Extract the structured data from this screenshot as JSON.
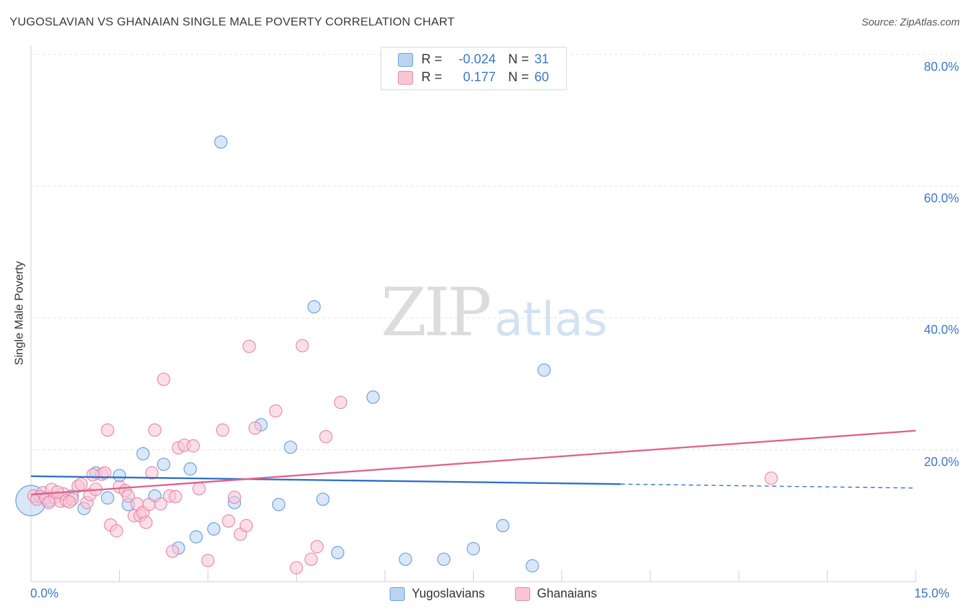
{
  "title": "YUGOSLAVIAN VS GHANAIAN SINGLE MALE POVERTY CORRELATION CHART",
  "source": "Source: ZipAtlas.com",
  "watermark": {
    "zip": "ZIP",
    "atlas": "atlas"
  },
  "colors": {
    "blue_fill": "#b9d3f3",
    "blue_stroke": "#6a9fe0",
    "blue_line": "#2c6fcb",
    "pink_fill": "#f8c5d6",
    "pink_stroke": "#e889aa",
    "pink_line": "#e0608e",
    "grid": "#e3e3e3",
    "accent_text": "#3a78c9"
  },
  "legend": {
    "rows": [
      {
        "r_label": "R =",
        "r_value": "-0.024",
        "n_label": "N =",
        "n_value": "31"
      },
      {
        "r_label": "R =",
        "r_value": "0.177",
        "n_label": "N =",
        "n_value": "60"
      }
    ]
  },
  "chart_data": {
    "type": "scatter",
    "title": "YUGOSLAVIAN VS GHANAIAN SINGLE MALE POVERTY CORRELATION CHART",
    "xlabel": "",
    "ylabel": "Single Male Poverty",
    "xlim": [
      0,
      15
    ],
    "ylim": [
      0,
      80
    ],
    "x_tick_labels": [
      "0.0%",
      "15.0%"
    ],
    "y_ticks": [
      20,
      40,
      60,
      80
    ],
    "y_tick_labels": [
      "20.0%",
      "40.0%",
      "60.0%",
      "80.0%"
    ],
    "grid": true,
    "series": [
      {
        "name": "Yugoslavians",
        "r": -0.024,
        "n": 31,
        "trend": {
          "x0": 0,
          "y0": 16.0,
          "x1": 10.0,
          "y1": 14.8,
          "dash_x1": 15.0,
          "dash_y1": 14.2
        },
        "points": [
          [
            0.0,
            12.3,
            22
          ],
          [
            0.3,
            12.5,
            11
          ],
          [
            0.7,
            13.0,
            9
          ],
          [
            0.9,
            11.1,
            9
          ],
          [
            1.1,
            16.5,
            9
          ],
          [
            1.3,
            12.7,
            9
          ],
          [
            1.5,
            16.1,
            9
          ],
          [
            1.65,
            11.7,
            9
          ],
          [
            1.9,
            19.4,
            9
          ],
          [
            2.1,
            13.0,
            9
          ],
          [
            2.25,
            17.8,
            9
          ],
          [
            2.5,
            5.1,
            9
          ],
          [
            2.7,
            17.1,
            9
          ],
          [
            2.8,
            6.8,
            9
          ],
          [
            3.1,
            8.0,
            9
          ],
          [
            3.22,
            66.7,
            9
          ],
          [
            3.45,
            12.0,
            9
          ],
          [
            3.9,
            23.8,
            9
          ],
          [
            4.2,
            11.7,
            9
          ],
          [
            4.4,
            20.4,
            9
          ],
          [
            4.8,
            41.7,
            9
          ],
          [
            4.95,
            12.5,
            9
          ],
          [
            5.2,
            4.4,
            9
          ],
          [
            5.8,
            28.0,
            9
          ],
          [
            6.35,
            3.4,
            9
          ],
          [
            7.0,
            3.4,
            9
          ],
          [
            7.5,
            5.0,
            9
          ],
          [
            8.0,
            8.5,
            9
          ],
          [
            8.5,
            2.4,
            9
          ],
          [
            8.7,
            32.1,
            9
          ],
          [
            0.15,
            12.9,
            9
          ]
        ]
      },
      {
        "name": "Ghanaians",
        "r": 0.177,
        "n": 60,
        "trend": {
          "x0": 0,
          "y0": 13.2,
          "x1": 15.0,
          "y1": 22.9
        },
        "points": [
          [
            0.05,
            13.0,
            9
          ],
          [
            0.1,
            12.5,
            9
          ],
          [
            0.2,
            13.5,
            9
          ],
          [
            0.25,
            12.7,
            9
          ],
          [
            0.35,
            14.0,
            9
          ],
          [
            0.4,
            12.8,
            9
          ],
          [
            0.5,
            12.2,
            9
          ],
          [
            0.55,
            13.3,
            9
          ],
          [
            0.6,
            12.3,
            9
          ],
          [
            0.7,
            12.5,
            9
          ],
          [
            0.8,
            14.5,
            9
          ],
          [
            0.85,
            14.8,
            9
          ],
          [
            0.95,
            12.0,
            9
          ],
          [
            1.0,
            13.2,
            9
          ],
          [
            1.1,
            14.0,
            9
          ],
          [
            1.2,
            16.3,
            9
          ],
          [
            1.25,
            16.5,
            9
          ],
          [
            1.3,
            23.0,
            9
          ],
          [
            1.35,
            8.6,
            9
          ],
          [
            1.45,
            7.7,
            9
          ],
          [
            1.5,
            14.4,
            9
          ],
          [
            1.6,
            13.8,
            9
          ],
          [
            1.65,
            13.0,
            9
          ],
          [
            1.75,
            10.0,
            9
          ],
          [
            1.8,
            11.8,
            9
          ],
          [
            1.85,
            10.0,
            9
          ],
          [
            1.9,
            10.5,
            9
          ],
          [
            1.95,
            9.0,
            9
          ],
          [
            2.0,
            11.7,
            9
          ],
          [
            2.05,
            16.5,
            9
          ],
          [
            2.1,
            23.0,
            9
          ],
          [
            2.2,
            11.8,
            9
          ],
          [
            2.25,
            30.7,
            9
          ],
          [
            2.35,
            13.0,
            9
          ],
          [
            2.4,
            4.6,
            9
          ],
          [
            2.45,
            12.9,
            9
          ],
          [
            2.5,
            20.3,
            9
          ],
          [
            2.6,
            20.7,
            9
          ],
          [
            2.75,
            20.6,
            9
          ],
          [
            2.85,
            14.1,
            9
          ],
          [
            3.0,
            3.2,
            9
          ],
          [
            3.25,
            23.0,
            9
          ],
          [
            3.35,
            9.2,
            9
          ],
          [
            3.45,
            12.8,
            9
          ],
          [
            3.55,
            7.2,
            9
          ],
          [
            3.65,
            8.5,
            9
          ],
          [
            3.7,
            35.7,
            9
          ],
          [
            3.8,
            23.3,
            9
          ],
          [
            4.15,
            25.9,
            9
          ],
          [
            4.5,
            2.1,
            9
          ],
          [
            4.6,
            35.8,
            9
          ],
          [
            4.75,
            3.4,
            9
          ],
          [
            4.85,
            5.3,
            9
          ],
          [
            5.0,
            22.0,
            9
          ],
          [
            5.25,
            27.2,
            9
          ],
          [
            0.3,
            12.0,
            9
          ],
          [
            0.45,
            13.6,
            9
          ],
          [
            0.65,
            12.1,
            9
          ],
          [
            1.05,
            16.2,
            9
          ],
          [
            12.55,
            15.7,
            9
          ]
        ]
      }
    ]
  },
  "bottom_legend": [
    {
      "label": "Yugoslavians"
    },
    {
      "label": "Ghanaians"
    }
  ]
}
